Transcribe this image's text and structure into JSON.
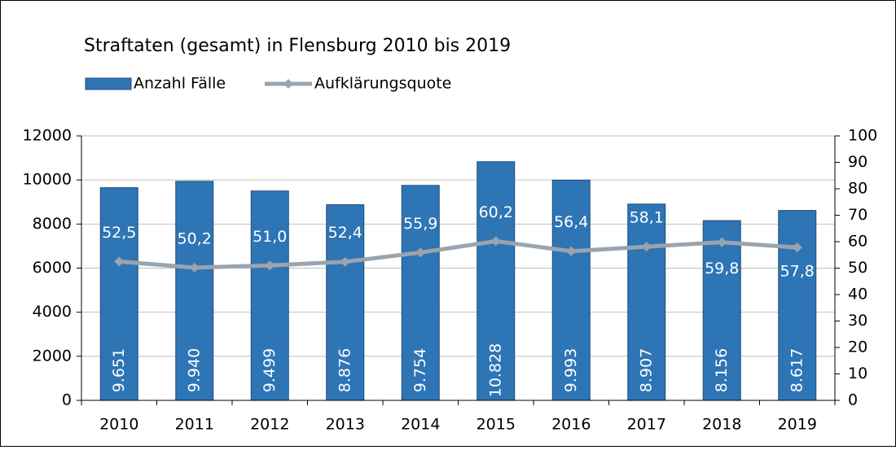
{
  "chart_data": {
    "type": "bar",
    "title": "Straftaten (gesamt) in Flensburg 2010 bis 2019",
    "categories": [
      "2010",
      "2011",
      "2012",
      "2013",
      "2014",
      "2015",
      "2016",
      "2017",
      "2018",
      "2019"
    ],
    "series": [
      {
        "name": "Anzahl Fälle",
        "type": "bar",
        "color": "#2e75b6",
        "values": [
          9651,
          9940,
          9499,
          8876,
          9754,
          10828,
          9993,
          8907,
          8156,
          8617
        ],
        "value_labels": [
          "9.651",
          "9.940",
          "9.499",
          "8.876",
          "9.754",
          "10.828",
          "9.993",
          "8.907",
          "8.156",
          "8.617"
        ]
      },
      {
        "name": "Aufklärungsquote",
        "type": "line",
        "axis": "y2",
        "color": "#9aa4ae",
        "values": [
          52.5,
          50.2,
          51.0,
          52.4,
          55.9,
          60.2,
          56.4,
          58.1,
          59.8,
          57.8
        ],
        "value_labels": [
          "52,5",
          "50,2",
          "51,0",
          "52,4",
          "55,9",
          "60,2",
          "56,4",
          "58,1",
          "59,8",
          "57,8"
        ]
      }
    ],
    "ylim": [
      0,
      12000
    ],
    "yticks": [
      0,
      2000,
      4000,
      6000,
      8000,
      10000,
      12000
    ],
    "y2lim": [
      0,
      100
    ],
    "y2ticks": [
      0,
      10,
      20,
      30,
      40,
      50,
      60,
      70,
      80,
      90,
      100
    ],
    "grid": true,
    "legend": "top"
  }
}
